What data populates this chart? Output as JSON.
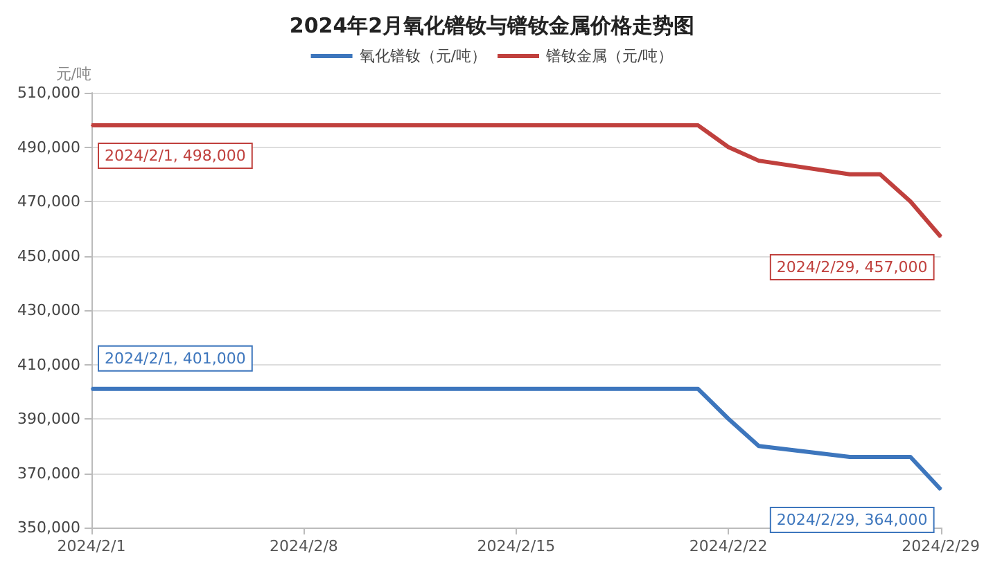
{
  "chart_data": {
    "type": "line",
    "title": "2024年2月氧化镨钕与镨钕金属价格走势图",
    "ylabel": "元/吨",
    "x": [
      "2024-02-01",
      "2024-02-21",
      "2024-02-22",
      "2024-02-23",
      "2024-02-26",
      "2024-02-27",
      "2024-02-28",
      "2024-02-29"
    ],
    "series": [
      {
        "name": "氧化镨钕（元/吨）",
        "color": "#3d76bd",
        "values": [
          401000,
          401000,
          390000,
          380000,
          376000,
          376000,
          376000,
          364000
        ]
      },
      {
        "name": "镨钕金属（元/吨）",
        "color": "#c0403d",
        "values": [
          498000,
          498000,
          490000,
          485000,
          480000,
          480000,
          470000,
          457000
        ]
      }
    ],
    "annotations": [
      {
        "text": "2024/2/1, 498,000",
        "x": "2024-02-01",
        "y": 498000
      },
      {
        "text": "2024/2/29, 457,000",
        "x": "2024-02-29",
        "y": 457000
      },
      {
        "text": "2024/2/1, 401,000",
        "x": "2024-02-01",
        "y": 401000
      },
      {
        "text": "2024/2/29, 364,000",
        "x": "2024-02-29",
        "y": 364000
      }
    ],
    "xlim": [
      "2024-02-01",
      "2024-02-29"
    ],
    "xticks": [
      {
        "value": "2024-02-01",
        "label": "2024/2/1"
      },
      {
        "value": "2024-02-08",
        "label": "2024/2/8"
      },
      {
        "value": "2024-02-15",
        "label": "2024/2/15"
      },
      {
        "value": "2024-02-22",
        "label": "2024/2/22"
      },
      {
        "value": "2024-02-29",
        "label": "2024/2/29"
      }
    ],
    "ylim": [
      350000,
      510000
    ],
    "yticks": [
      {
        "value": 350000,
        "label": "350,000"
      },
      {
        "value": 370000,
        "label": "370,000"
      },
      {
        "value": 390000,
        "label": "390,000"
      },
      {
        "value": 410000,
        "label": "410,000"
      },
      {
        "value": 430000,
        "label": "430,000"
      },
      {
        "value": 450000,
        "label": "450,000"
      },
      {
        "value": 470000,
        "label": "470,000"
      },
      {
        "value": 490000,
        "label": "490,000"
      },
      {
        "value": 510000,
        "label": "510,000"
      }
    ],
    "grid": "y",
    "legend": "top",
    "marker": "none",
    "line_style": "solid"
  }
}
